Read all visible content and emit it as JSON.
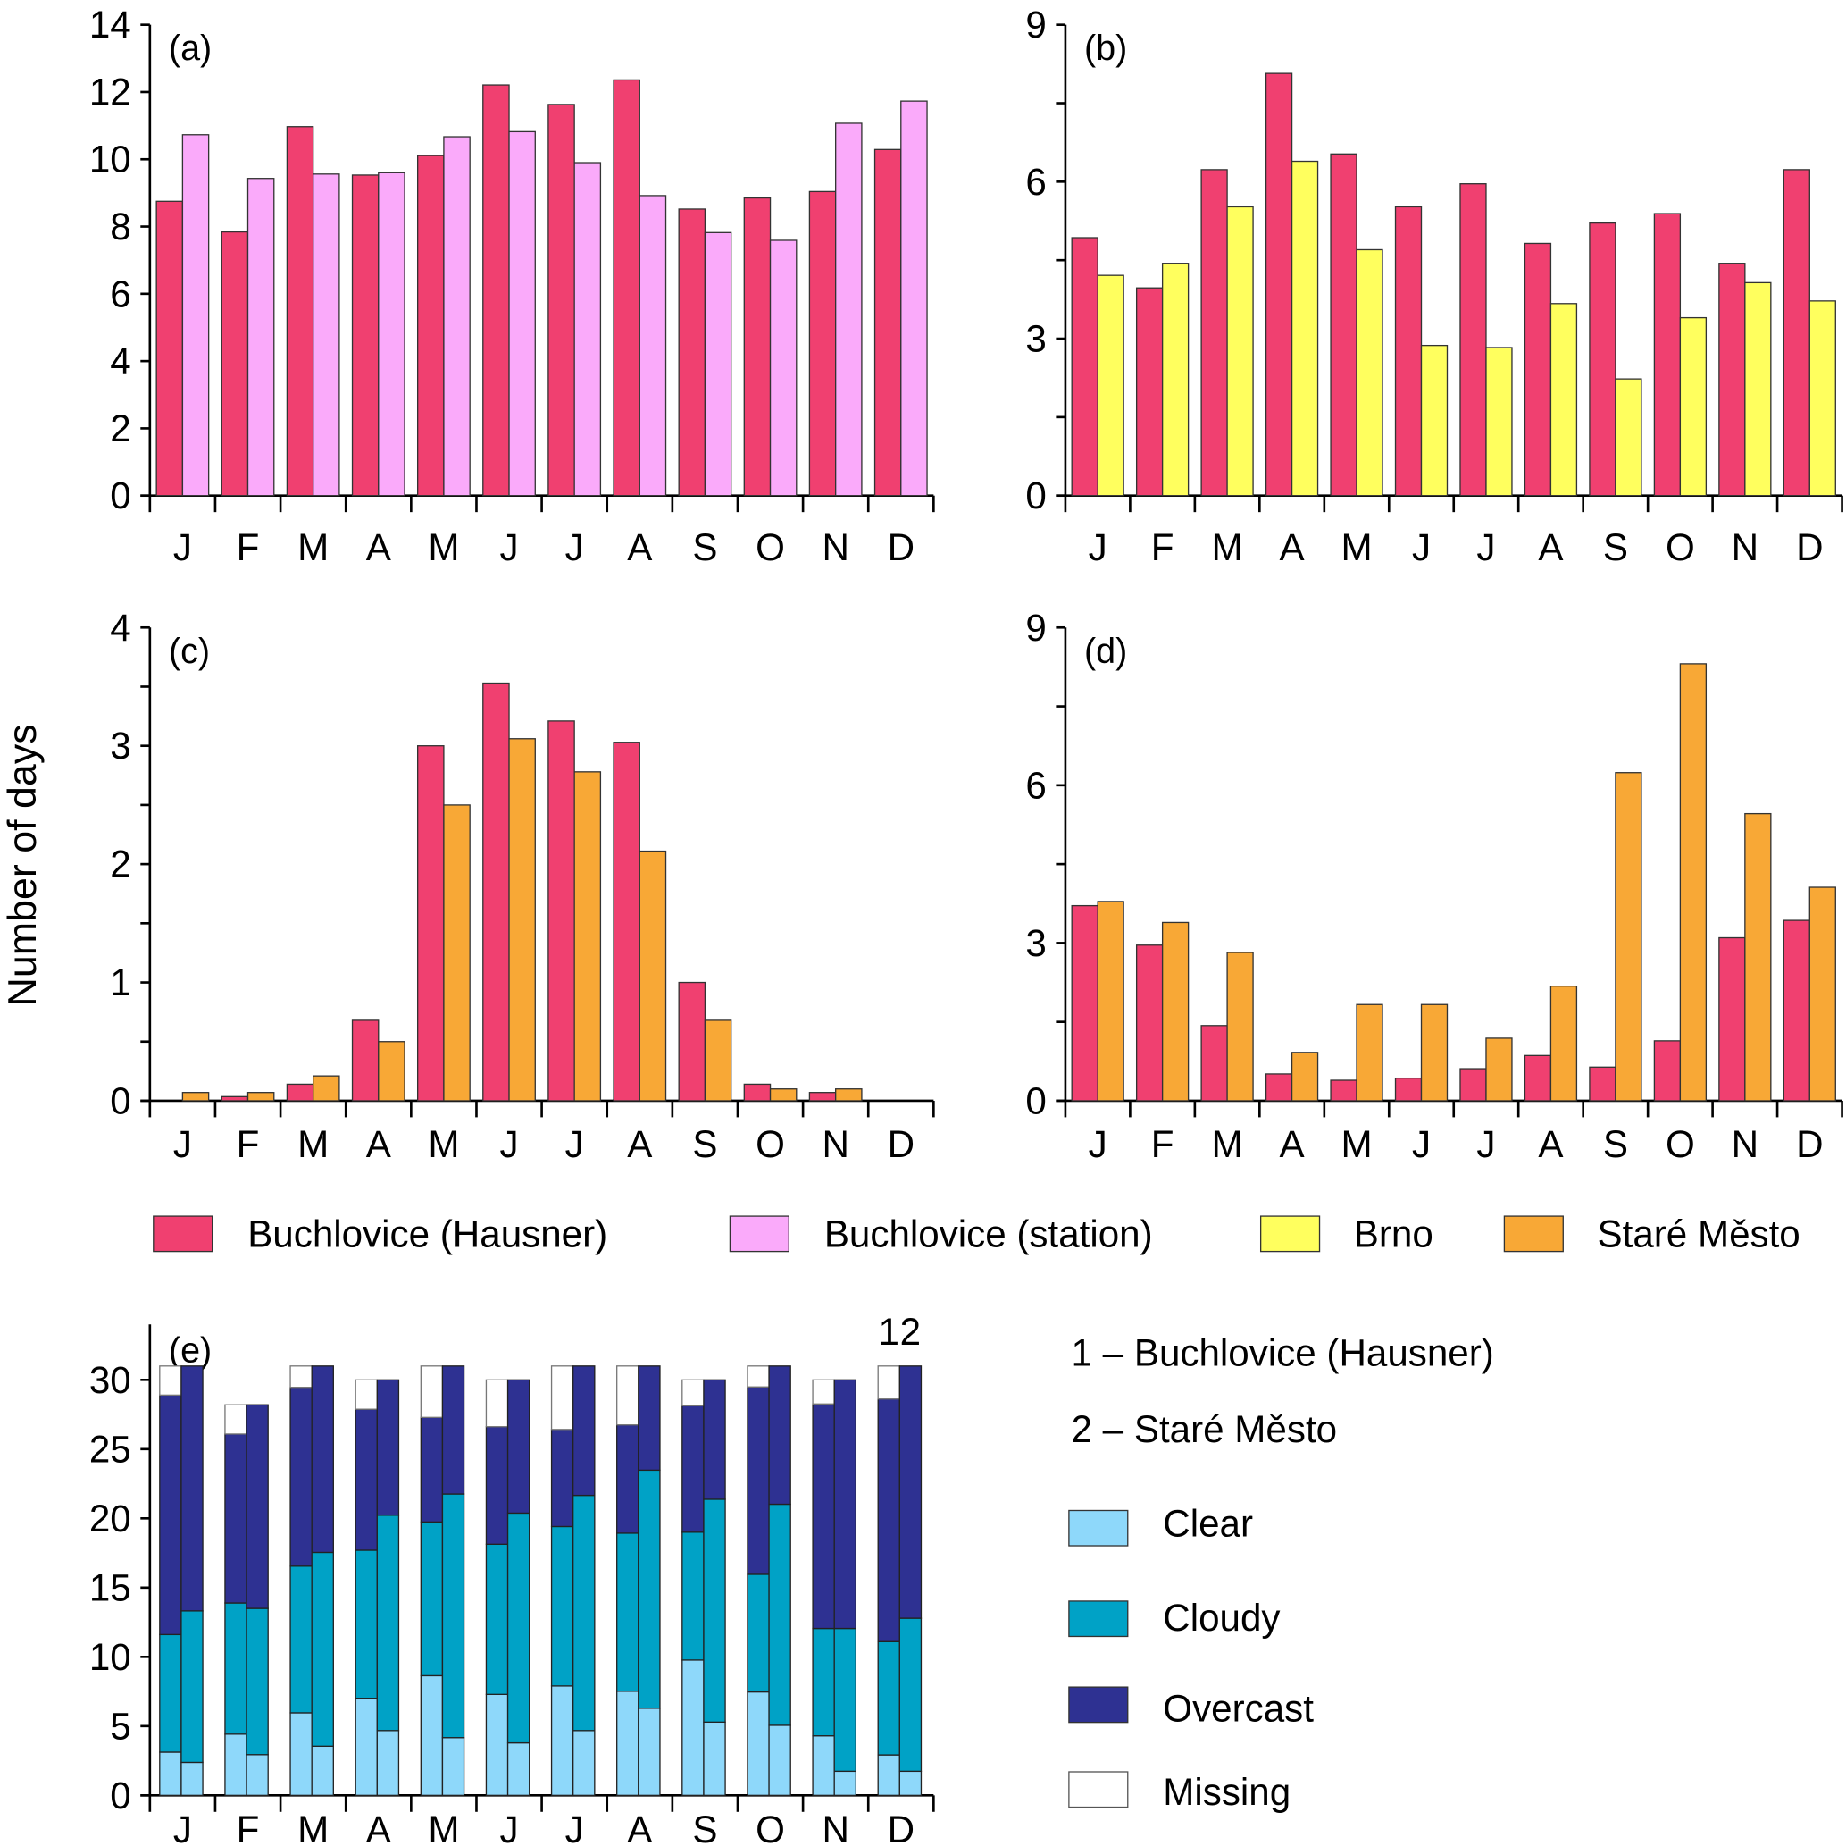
{
  "figure": {
    "y_axis_label": "Number of days",
    "months": [
      "J",
      "F",
      "M",
      "A",
      "M",
      "J",
      "J",
      "A",
      "S",
      "O",
      "N",
      "D"
    ],
    "colors": {
      "buchlovice_hausner": "#F04070",
      "buchlovice_station": "#FAAAFA",
      "brno": "#FFFF5E",
      "stare_mesto": "#F8A836",
      "clear": "#8ED8FA",
      "cloudy": "#00A2C6",
      "overcast": "#2E3192",
      "missing": "#FFFFFF"
    },
    "legend_top": [
      {
        "key": "buchlovice_hausner",
        "label": "Buchlovice (Hausner)"
      },
      {
        "key": "buchlovice_station",
        "label": "Buchlovice (station)"
      },
      {
        "key": "brno",
        "label": "Brno"
      },
      {
        "key": "stare_mesto",
        "label": "Staré Město"
      }
    ],
    "legend_e": {
      "station_1": "1 – Buchlovice (Hausner)",
      "station_2": "2 – Staré Město",
      "items": [
        {
          "key": "clear",
          "label": "Clear"
        },
        {
          "key": "cloudy",
          "label": "Cloudy"
        },
        {
          "key": "overcast",
          "label": "Overcast"
        },
        {
          "key": "missing",
          "label": "Missing"
        }
      ],
      "column_labels": [
        "1",
        "2"
      ]
    }
  },
  "chart_data": [
    {
      "id": "a",
      "type": "bar",
      "title": "(a)",
      "categories": [
        "J",
        "F",
        "M",
        "A",
        "M",
        "J",
        "J",
        "A",
        "S",
        "O",
        "N",
        "D"
      ],
      "ylim": [
        0,
        14
      ],
      "yticks": [
        0,
        2,
        4,
        6,
        8,
        10,
        12,
        14
      ],
      "ylabel": "Number of days",
      "series": [
        {
          "name": "Buchlovice (Hausner)",
          "key": "buchlovice_hausner",
          "values": [
            8.75,
            7.84,
            10.97,
            9.53,
            10.11,
            12.21,
            11.63,
            12.36,
            8.52,
            8.85,
            9.04,
            10.29
          ]
        },
        {
          "name": "Buchlovice (station)",
          "key": "buchlovice_station",
          "values": [
            10.73,
            9.43,
            9.56,
            9.6,
            10.67,
            10.82,
            9.9,
            8.92,
            7.82,
            7.59,
            11.07,
            11.73
          ]
        }
      ]
    },
    {
      "id": "b",
      "type": "bar",
      "title": "(b)",
      "categories": [
        "J",
        "F",
        "M",
        "A",
        "M",
        "J",
        "J",
        "A",
        "S",
        "O",
        "N",
        "D"
      ],
      "ylim": [
        0,
        9
      ],
      "yticks": [
        0,
        3,
        6,
        9
      ],
      "minor_step": 1.5,
      "series": [
        {
          "name": "Buchlovice (Hausner)",
          "key": "buchlovice_hausner",
          "values": [
            4.93,
            3.97,
            6.23,
            8.07,
            6.53,
            5.52,
            5.96,
            4.82,
            5.21,
            5.39,
            4.44,
            6.23
          ]
        },
        {
          "name": "Brno",
          "key": "brno",
          "values": [
            4.21,
            4.44,
            5.52,
            6.39,
            4.7,
            2.87,
            2.83,
            3.67,
            2.23,
            3.4,
            4.07,
            3.72
          ]
        }
      ]
    },
    {
      "id": "c",
      "type": "bar",
      "title": "(c)",
      "categories": [
        "J",
        "F",
        "M",
        "A",
        "M",
        "J",
        "J",
        "A",
        "S",
        "O",
        "N",
        "D"
      ],
      "ylim": [
        0,
        4
      ],
      "yticks": [
        0,
        1,
        2,
        3,
        4
      ],
      "minor_step": 0.5,
      "series": [
        {
          "name": "Buchlovice (Hausner)",
          "key": "buchlovice_hausner",
          "values": [
            0,
            0.035,
            0.14,
            0.68,
            3.0,
            3.53,
            3.21,
            3.03,
            1.0,
            0.14,
            0.07,
            0
          ]
        },
        {
          "name": "Staré Město",
          "key": "stare_mesto",
          "values": [
            0.07,
            0.07,
            0.21,
            0.5,
            2.5,
            3.06,
            2.78,
            2.11,
            0.68,
            0.1,
            0.1,
            0
          ]
        }
      ]
    },
    {
      "id": "d",
      "type": "bar",
      "title": "(d)",
      "categories": [
        "J",
        "F",
        "M",
        "A",
        "M",
        "J",
        "J",
        "A",
        "S",
        "O",
        "N",
        "D"
      ],
      "ylim": [
        0,
        9
      ],
      "yticks": [
        0,
        3,
        6,
        9
      ],
      "minor_step": 1.5,
      "series": [
        {
          "name": "Buchlovice (Hausner)",
          "key": "buchlovice_hausner",
          "values": [
            3.71,
            2.96,
            1.43,
            0.51,
            0.39,
            0.43,
            0.61,
            0.86,
            0.64,
            1.14,
            3.1,
            3.43
          ]
        },
        {
          "name": "Staré Město",
          "key": "stare_mesto",
          "values": [
            3.79,
            3.39,
            2.82,
            0.92,
            1.83,
            1.83,
            1.19,
            2.18,
            6.24,
            8.31,
            5.46,
            4.06
          ]
        }
      ]
    },
    {
      "id": "e",
      "type": "bar",
      "stacked": true,
      "title": "(e)",
      "categories": [
        "J",
        "F",
        "M",
        "A",
        "M",
        "J",
        "J",
        "A",
        "S",
        "O",
        "N",
        "D"
      ],
      "ylim": [
        0,
        34
      ],
      "yticks": [
        0,
        5,
        10,
        15,
        20,
        25,
        30
      ],
      "stations": [
        {
          "name": "Buchlovice (Hausner)",
          "column": "1",
          "clear": [
            3.12,
            4.42,
            5.96,
            7.01,
            8.64,
            7.29,
            7.9,
            7.52,
            9.77,
            7.47,
            4.3,
            2.92
          ],
          "cloudy": [
            8.49,
            9.47,
            10.59,
            10.69,
            11.1,
            10.84,
            11.51,
            11.41,
            9.23,
            8.49,
            7.75,
            8.18
          ],
          "overcast": [
            17.29,
            12.2,
            12.91,
            10.18,
            7.55,
            8.49,
            7.01,
            7.82,
            9.13,
            13.53,
            16.21,
            17.52
          ],
          "missing": [
            2.1,
            2.11,
            1.54,
            2.12,
            3.71,
            3.38,
            4.58,
            4.25,
            1.87,
            1.51,
            1.74,
            2.38
          ]
        },
        {
          "name": "Staré Město",
          "column": "2",
          "clear": [
            2.38,
            2.94,
            3.55,
            4.68,
            4.17,
            3.79,
            4.68,
            6.29,
            5.29,
            5.06,
            1.74,
            1.74
          ],
          "cloudy": [
            10.94,
            10.56,
            13.99,
            15.55,
            17.59,
            16.59,
            16.98,
            17.19,
            16.09,
            15.96,
            10.31,
            11.05
          ],
          "overcast": [
            17.68,
            14.7,
            13.46,
            9.77,
            9.24,
            9.62,
            9.34,
            7.52,
            8.62,
            9.98,
            17.95,
            18.21
          ],
          "missing": [
            0,
            0,
            0,
            0,
            0,
            0,
            0,
            0,
            0,
            0,
            0,
            0
          ]
        }
      ]
    }
  ]
}
